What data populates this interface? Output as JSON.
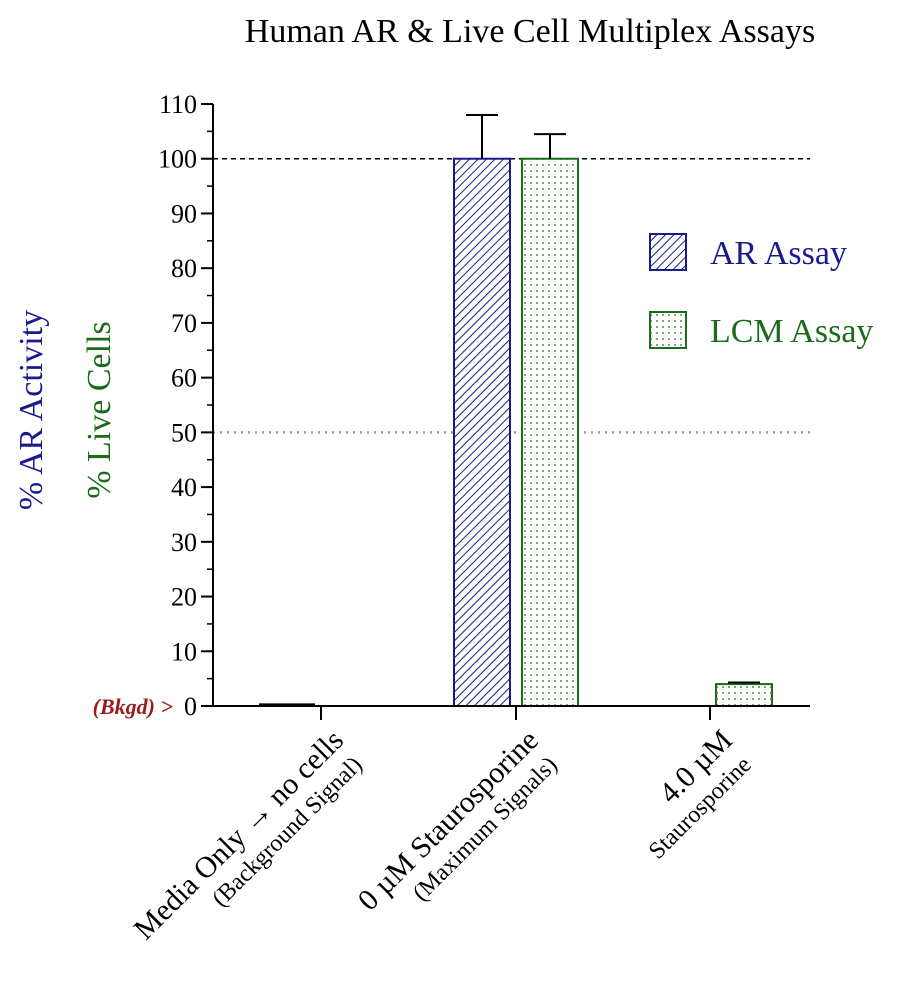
{
  "chart_data": {
    "type": "bar",
    "title": "Human AR & Live Cell Multiplex Assays",
    "ylabel_parts": [
      "% AR Activity",
      "% Live Cells"
    ],
    "ylim": [
      0,
      110
    ],
    "yticks": [
      0,
      10,
      20,
      30,
      40,
      50,
      60,
      70,
      80,
      90,
      100,
      110
    ],
    "categories": [
      {
        "lines": [
          "Media Only → no cells",
          "(Background Signal)"
        ]
      },
      {
        "lines": [
          "0 µM Staurosporine",
          "(Maximum Signals)"
        ]
      },
      {
        "lines": [
          "4.0 µM",
          "Staurosporine"
        ]
      }
    ],
    "series": [
      {
        "name": "AR Assay",
        "color": "#1a1a8c",
        "pattern": "diagonal-hatch",
        "values": [
          0.3,
          100,
          null
        ],
        "errors": [
          0,
          8,
          null
        ]
      },
      {
        "name": "LCM Assay",
        "color": "#1a6b1a",
        "pattern": "dots",
        "values": [
          0,
          100,
          4
        ],
        "errors": [
          0,
          4.5,
          0.3
        ]
      }
    ],
    "reference_lines": [
      {
        "y": 100,
        "style": "dashed",
        "color": "#000000"
      },
      {
        "y": 50,
        "style": "dotted",
        "color": "#999999"
      },
      {
        "y": 0,
        "style": "dashed",
        "color": "#9b1b1b",
        "label": "(Bkgd) >"
      }
    ],
    "legend_position": "right"
  }
}
